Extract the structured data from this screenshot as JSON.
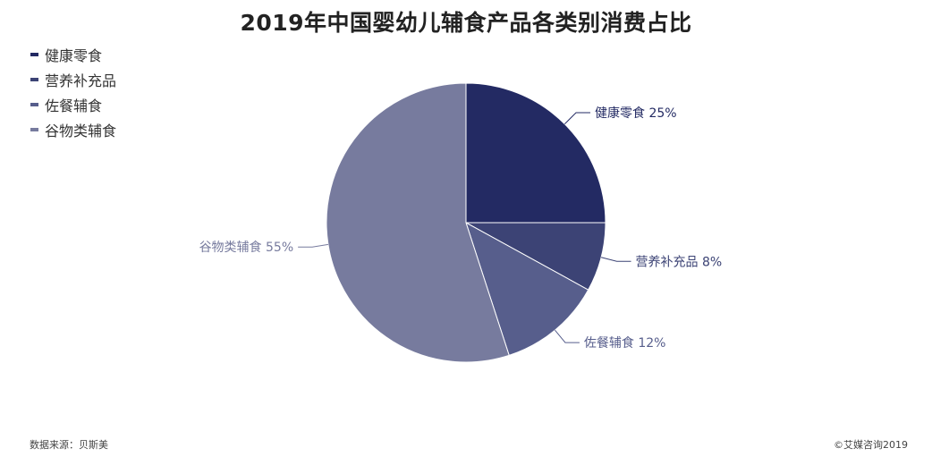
{
  "chart_data": {
    "type": "pie",
    "title": "2019年中国婴幼儿辅食产品各类别消费占比",
    "slices": [
      {
        "label": "健康零食",
        "value": 25,
        "value_label": "25%",
        "color": "#232a63"
      },
      {
        "label": "营养补充品",
        "value": 8,
        "value_label": "8%",
        "color": "#3c4375"
      },
      {
        "label": "佐餐辅食",
        "value": 12,
        "value_label": "12%",
        "color": "#575e8c"
      },
      {
        "label": "谷物类辅食",
        "value": 55,
        "value_label": "55%",
        "color": "#777b9e"
      }
    ],
    "legend_placement": "top-left"
  },
  "footer": {
    "source": "数据来源：贝斯美",
    "copyright": "©艾媒咨询2019"
  }
}
